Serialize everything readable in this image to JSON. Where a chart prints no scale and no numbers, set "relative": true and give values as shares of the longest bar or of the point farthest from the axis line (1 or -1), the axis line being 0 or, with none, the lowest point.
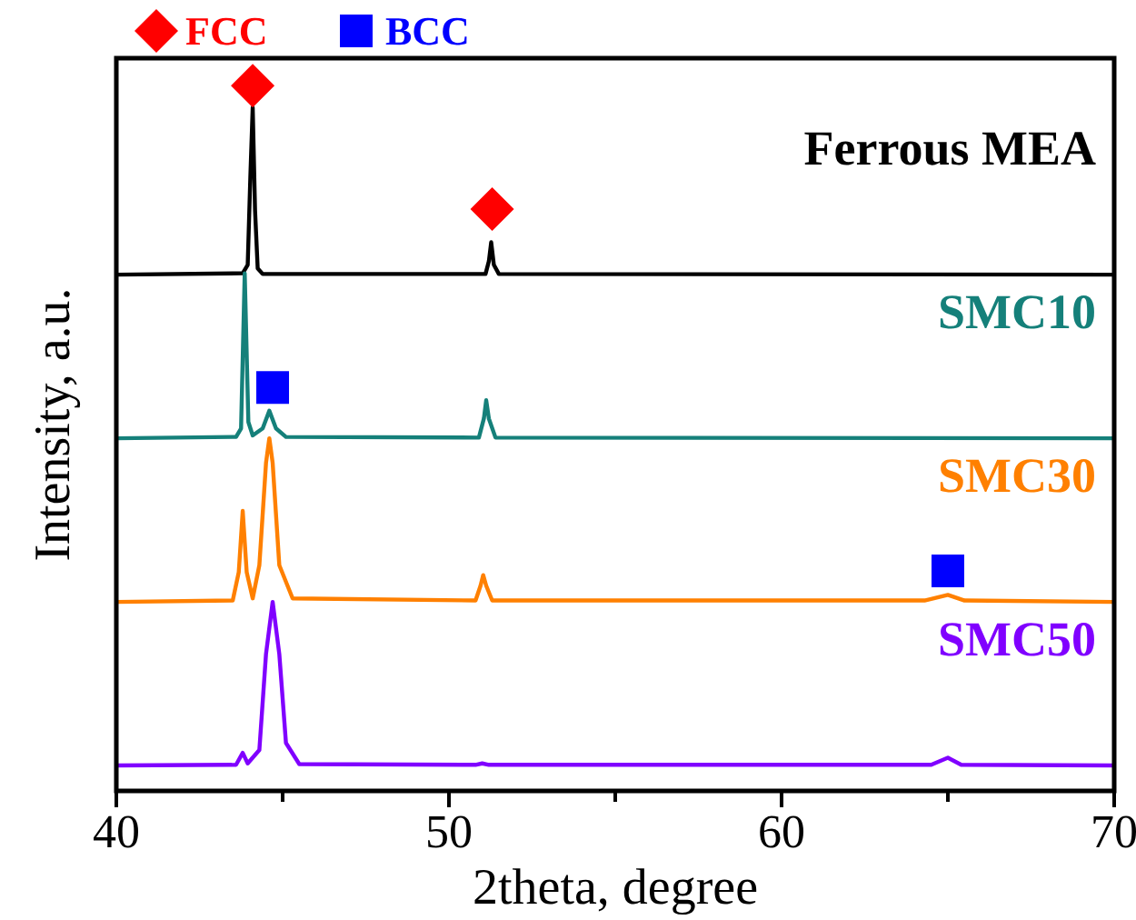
{
  "chart_data": {
    "type": "line",
    "relative": true,
    "xlabel": "2theta, degree",
    "ylabel": "Intensity, a.u.",
    "xlim": [
      40,
      70
    ],
    "xticks": [
      40,
      {
        "value": 45,
        "label": null
      },
      50,
      {
        "value": 55,
        "label": null
      },
      60,
      {
        "value": 65,
        "label": null
      },
      70
    ],
    "legend": "top left",
    "grid": false,
    "line_style": "solid",
    "series": [
      {
        "name": "Ferrous MEA",
        "color": "#000000",
        "x": [
          40,
          43.8,
          43.95,
          44.03,
          44.1,
          44.17,
          44.25,
          44.4,
          51.1,
          51.2,
          51.27,
          51.35,
          51.5,
          70
        ],
        "values": [
          0.732,
          0.734,
          0.746,
          0.872,
          0.969,
          0.824,
          0.741,
          0.733,
          0.733,
          0.751,
          0.778,
          0.746,
          0.733,
          0.732
        ]
      },
      {
        "name": "SMC10",
        "color": "#15807a",
        "x": [
          40,
          43.6,
          43.75,
          43.86,
          43.97,
          44.1,
          44.4,
          44.6,
          44.8,
          45.1,
          50.9,
          51.05,
          51.12,
          51.2,
          51.4,
          70
        ],
        "values": [
          0.5,
          0.502,
          0.514,
          0.734,
          0.523,
          0.504,
          0.514,
          0.539,
          0.514,
          0.502,
          0.501,
          0.528,
          0.554,
          0.528,
          0.501,
          0.5
        ]
      },
      {
        "name": "SMC30",
        "color": "#ff8000",
        "x": [
          40,
          43.5,
          43.68,
          43.8,
          43.92,
          44.1,
          44.3,
          44.5,
          44.6,
          44.7,
          44.9,
          45.3,
          50.8,
          50.95,
          51.03,
          51.12,
          51.3,
          64.3,
          65.0,
          65.5,
          70
        ],
        "values": [
          0.268,
          0.27,
          0.31,
          0.397,
          0.31,
          0.273,
          0.32,
          0.465,
          0.5,
          0.465,
          0.32,
          0.273,
          0.27,
          0.291,
          0.306,
          0.291,
          0.27,
          0.27,
          0.278,
          0.27,
          0.268
        ]
      },
      {
        "name": "SMC50",
        "color": "#8000ff",
        "x": [
          40,
          43.6,
          43.8,
          43.95,
          44.3,
          44.5,
          44.7,
          44.9,
          45.1,
          45.5,
          50.8,
          51.0,
          51.2,
          64.5,
          65.0,
          65.4,
          70
        ],
        "values": [
          0.036,
          0.037,
          0.054,
          0.039,
          0.058,
          0.194,
          0.268,
          0.194,
          0.068,
          0.038,
          0.037,
          0.039,
          0.037,
          0.037,
          0.047,
          0.037,
          0.036
        ]
      },
      {
        "name": "FCC",
        "type": "scatter",
        "marker": "diamond",
        "color": "#ff0000",
        "x": [
          44.1,
          51.3
        ],
        "values": [
          1.0,
          0.825
        ]
      },
      {
        "name": "BCC",
        "type": "scatter",
        "marker": "square",
        "color": "#0000ff",
        "x": [
          44.7,
          65.0
        ],
        "values": [
          0.572,
          0.312
        ]
      }
    ]
  }
}
